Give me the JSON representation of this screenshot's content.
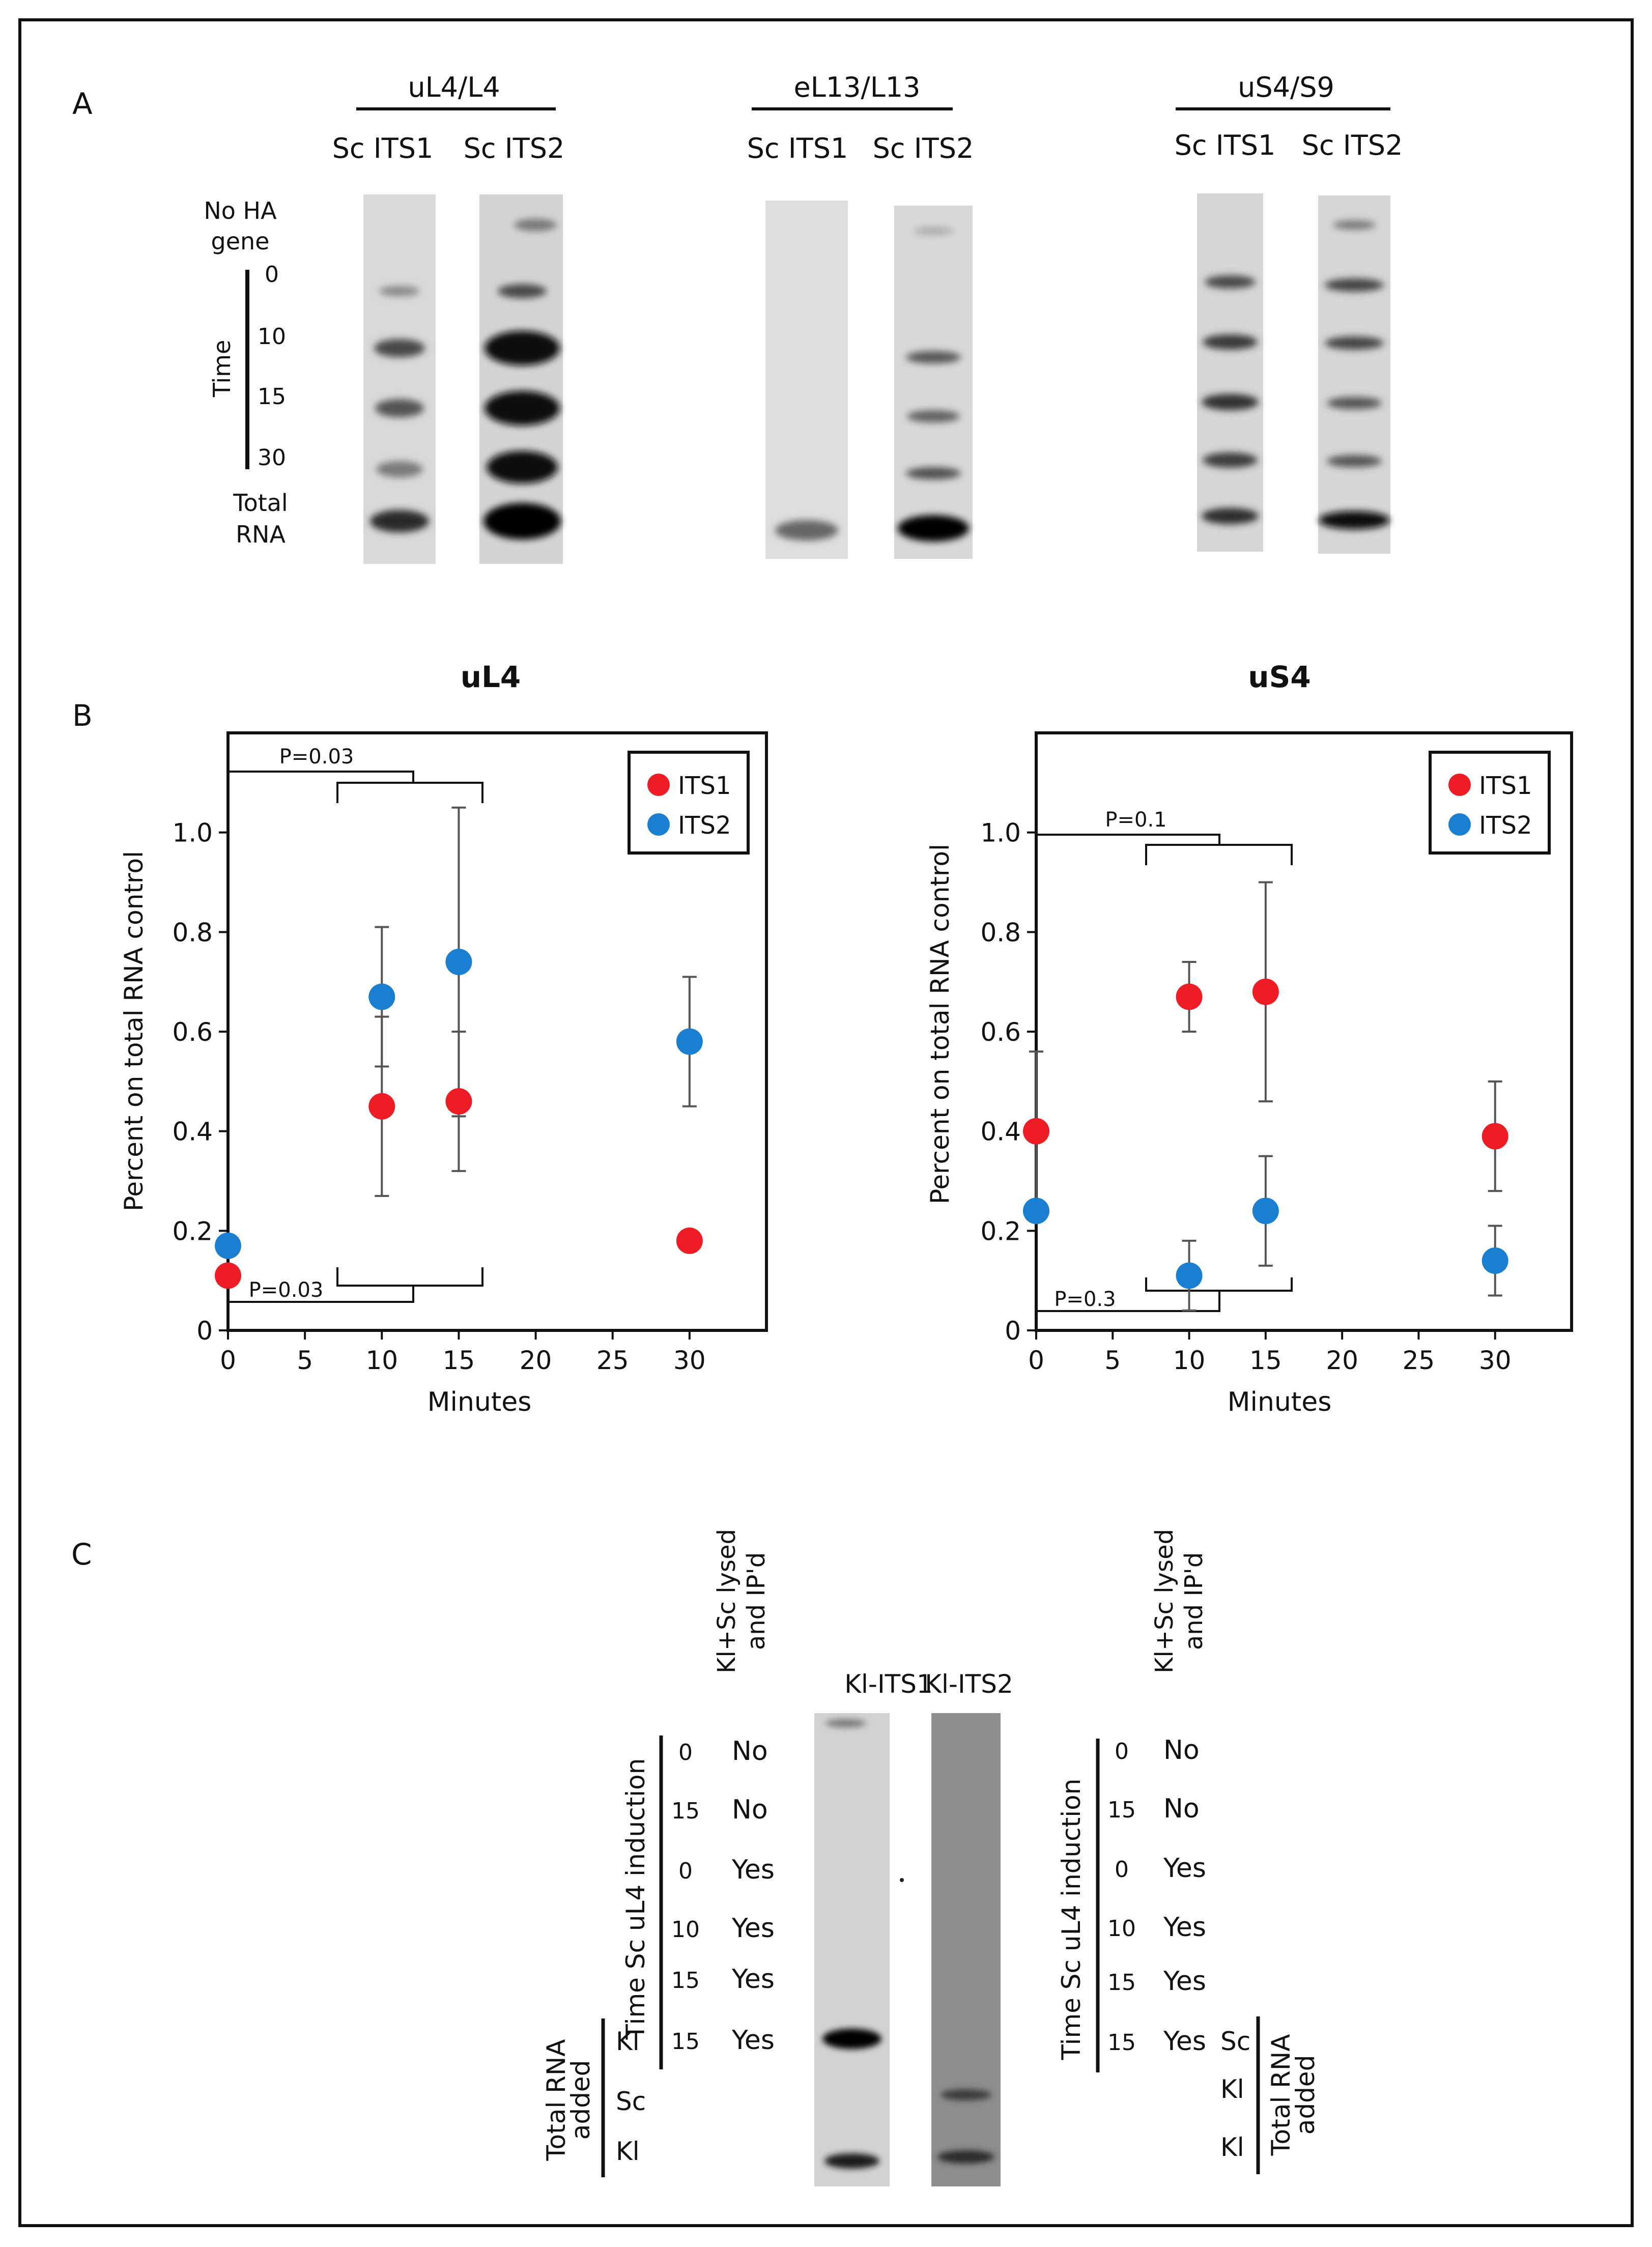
{
  "panel_a": {
    "letter": "A",
    "groups": [
      {
        "title": "uL4/L4",
        "lanes": [
          "Sc ITS1",
          "Sc ITS2"
        ]
      },
      {
        "title": "eL13/L13",
        "lanes": [
          "Sc ITS1",
          "Sc ITS2"
        ]
      },
      {
        "title": "uS4/S9",
        "lanes": [
          "Sc ITS1",
          "Sc ITS2"
        ]
      }
    ],
    "row_labels": {
      "no_ha_line1": "No HA",
      "no_ha_line2": "gene",
      "time_label": "Time",
      "times": [
        "0",
        "10",
        "15",
        "30"
      ],
      "total_line1": "Total",
      "total_line2": "RNA"
    }
  },
  "panel_b": {
    "letter": "B",
    "legend": [
      "ITS1",
      "ITS2"
    ],
    "colors": {
      "ITS1": "#ee1c25",
      "ITS2": "#1a7fd0",
      "error": "#555555",
      "axis": "#111111"
    }
  },
  "chart_data": [
    {
      "type": "scatter",
      "title": "uL4",
      "xlabel": "Minutes",
      "ylabel": "Percent on total RNA control",
      "xlim": [
        0,
        35
      ],
      "ylim": [
        0,
        1.2
      ],
      "xticks": [
        "0",
        "5",
        "10",
        "15",
        "20",
        "25",
        "30"
      ],
      "yticks": [
        "0",
        "0.2",
        "0.4",
        "0.6",
        "0.8",
        "1.0"
      ],
      "series": [
        {
          "name": "ITS1",
          "x": [
            0,
            10,
            15,
            30
          ],
          "y": [
            0.11,
            0.45,
            0.46,
            0.18
          ],
          "err": [
            0,
            0.18,
            0.14,
            0
          ]
        },
        {
          "name": "ITS2",
          "x": [
            0,
            10,
            15,
            30
          ],
          "y": [
            0.17,
            0.67,
            0.74,
            0.58
          ],
          "err": [
            0,
            0.14,
            0.31,
            0.13
          ]
        }
      ],
      "annotations": {
        "upper": "P=0.03",
        "lower": "P=0.03"
      }
    },
    {
      "type": "scatter",
      "title": "uS4",
      "xlabel": "Minutes",
      "ylabel": "Percent on total RNA control",
      "xlim": [
        0,
        35
      ],
      "ylim": [
        0,
        1.2
      ],
      "xticks": [
        "0",
        "5",
        "10",
        "15",
        "20",
        "25",
        "30"
      ],
      "yticks": [
        "0",
        "0.2",
        "0.4",
        "0.6",
        "0.8",
        "1.0"
      ],
      "series": [
        {
          "name": "ITS1",
          "x": [
            0,
            10,
            15,
            30
          ],
          "y": [
            0.4,
            0.67,
            0.68,
            0.39
          ],
          "err": [
            0.16,
            0.07,
            0.22,
            0.11
          ]
        },
        {
          "name": "ITS2",
          "x": [
            0,
            10,
            15,
            30
          ],
          "y": [
            0.24,
            0.11,
            0.24,
            0.14
          ],
          "err": [
            0,
            0.07,
            0.11,
            0.07
          ]
        }
      ],
      "annotations": {
        "upper": "P=0.1",
        "lower": "P=0.3"
      }
    }
  ],
  "panel_c": {
    "letter": "C",
    "header_line1": "Kl+Sc lysed",
    "header_line2": "and IP'd",
    "lanes": [
      "Kl-ITS1",
      "Kl-ITS2"
    ],
    "time_label": "Time Sc uL4 induction",
    "total_line1": "Total RNA",
    "total_line2": "added",
    "times": [
      "0",
      "15",
      "0",
      "10",
      "15",
      "15"
    ],
    "ip": [
      "No",
      "No",
      "Yes",
      "Yes",
      "Yes",
      "Yes"
    ],
    "total_left": [
      "Kl",
      "Sc",
      "Kl"
    ],
    "total_right": [
      "Sc",
      "Kl",
      "Kl"
    ]
  }
}
